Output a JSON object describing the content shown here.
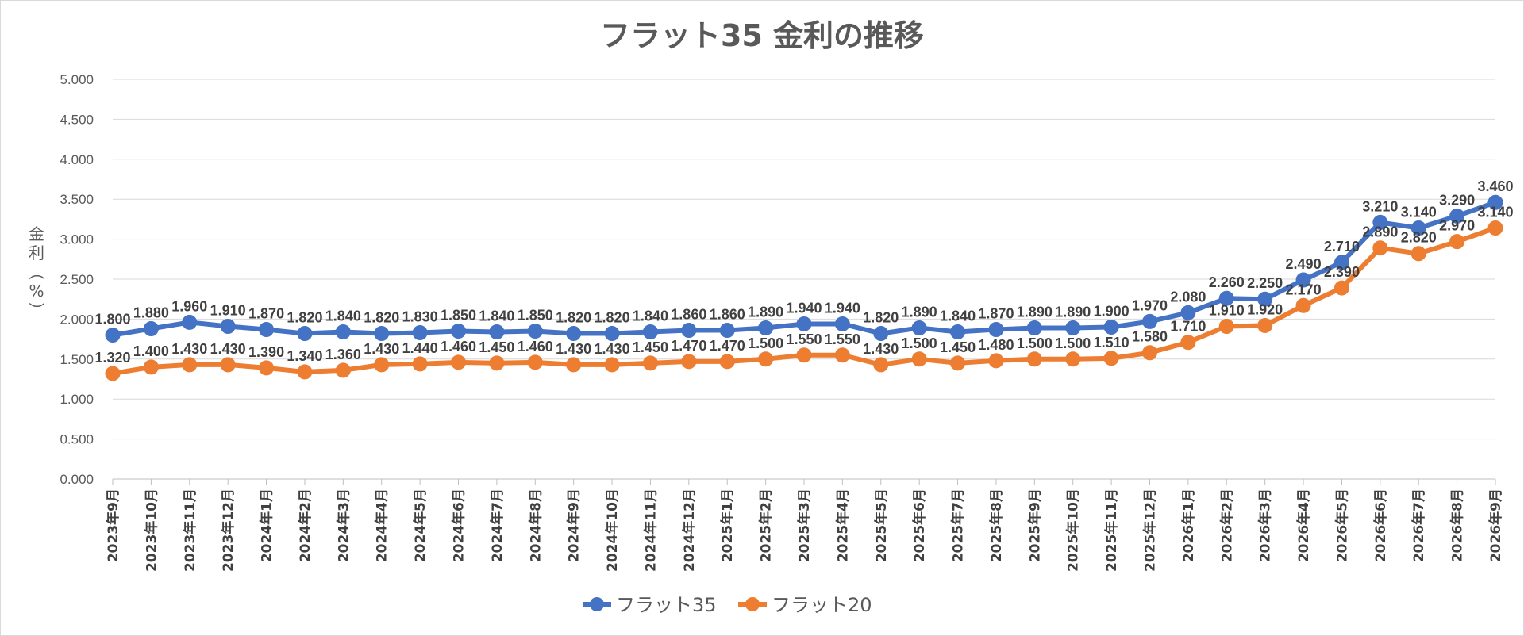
{
  "chart_data": {
    "type": "line",
    "title": "フラット35 金利の推移",
    "ylabel": "金利（%）",
    "xlabel": "",
    "ylim": [
      0,
      5
    ],
    "ytick_step": 0.5,
    "ytick_labels": [
      "0.000",
      "0.500",
      "1.000",
      "1.500",
      "2.000",
      "2.500",
      "3.000",
      "3.500",
      "4.000",
      "4.500",
      "5.000"
    ],
    "grid": true,
    "legend_position": "bottom",
    "categories": [
      "2023年9月",
      "2023年10月",
      "2023年11月",
      "2023年12月",
      "2024年1月",
      "2024年2月",
      "2024年3月",
      "2024年4月",
      "2024年5月",
      "2024年6月",
      "2024年7月",
      "2024年8月",
      "2024年9月",
      "2024年10月",
      "2024年11月",
      "2024年12月",
      "2025年1月",
      "2025年2月",
      "2025年3月",
      "2025年4月",
      "2025年5月",
      "2025年6月",
      "2025年7月",
      "2025年8月",
      "2025年9月",
      "2025年10月",
      "2025年11月",
      "2025年12月",
      "2026年1月",
      "2026年2月",
      "2026年3月",
      "2026年4月",
      "2026年5月",
      "2026年6月",
      "2026年7月",
      "2026年8月",
      "2026年9月"
    ],
    "series": [
      {
        "name": "フラット35",
        "color": "#4472c4",
        "values": [
          1.8,
          1.88,
          1.96,
          1.91,
          1.87,
          1.82,
          1.84,
          1.82,
          1.83,
          1.85,
          1.84,
          1.85,
          1.82,
          1.82,
          1.84,
          1.86,
          1.86,
          1.89,
          1.94,
          1.94,
          1.82,
          1.89,
          1.84,
          1.87,
          1.89,
          1.89,
          1.9,
          1.97,
          2.08,
          2.26,
          2.25,
          2.49,
          2.71,
          3.21,
          3.14,
          3.29,
          3.46
        ],
        "labels": [
          "1.800",
          "1.880",
          "1.960",
          "1.910",
          "1.870",
          "1.820",
          "1.840",
          "1.820",
          "1.830",
          "1.850",
          "1.840",
          "1.850",
          "1.820",
          "1.820",
          "1.840",
          "1.860",
          "1.860",
          "1.890",
          "1.940",
          "1.940",
          "1.820",
          "1.890",
          "1.840",
          "1.870",
          "1.890",
          "1.890",
          "1.900",
          "1.970",
          "2.080",
          "2.260",
          "2.250",
          "2.490",
          "2.710",
          "3.210",
          "3.140",
          "3.290",
          "3.460"
        ]
      },
      {
        "name": "フラット20",
        "color": "#ed7d31",
        "values": [
          1.32,
          1.4,
          1.43,
          1.43,
          1.39,
          1.34,
          1.36,
          1.43,
          1.44,
          1.46,
          1.45,
          1.46,
          1.43,
          1.43,
          1.45,
          1.47,
          1.47,
          1.5,
          1.55,
          1.55,
          1.43,
          1.5,
          1.45,
          1.48,
          1.5,
          1.5,
          1.51,
          1.58,
          1.71,
          1.91,
          1.92,
          2.17,
          2.39,
          2.89,
          2.82,
          2.97,
          3.14
        ],
        "labels": [
          "1.320",
          "1.400",
          "1.430",
          "1.430",
          "1.390",
          "1.340",
          "1.360",
          "1.430",
          "1.440",
          "1.460",
          "1.450",
          "1.460",
          "1.430",
          "1.430",
          "1.450",
          "1.470",
          "1.470",
          "1.500",
          "1.550",
          "1.550",
          "1.430",
          "1.500",
          "1.450",
          "1.480",
          "1.500",
          "1.500",
          "1.510",
          "1.580",
          "1.710",
          "1.910",
          "1.920",
          "2.170",
          "2.390",
          "2.890",
          "2.820",
          "2.970",
          "3.140"
        ]
      }
    ]
  }
}
